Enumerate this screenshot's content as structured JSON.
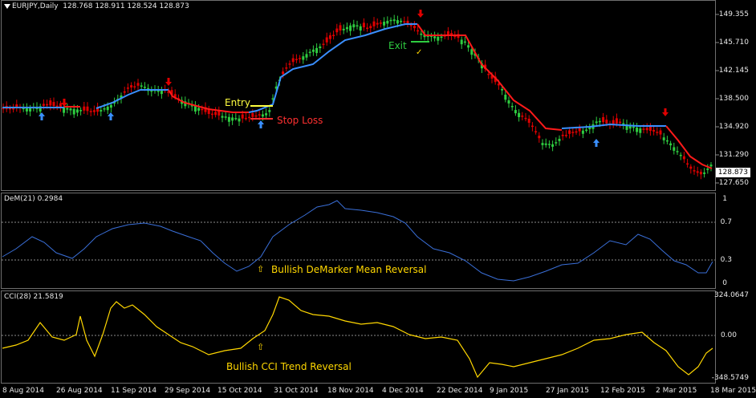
{
  "main_chart": {
    "title": "EURJPY,Daily  128.768 128.911 128.524 128.873",
    "price_badge": "128.873",
    "y_labels": [
      "149.355",
      "145.710",
      "142.145",
      "138.500",
      "134.920",
      "131.290",
      "127.650"
    ],
    "annotations": {
      "entry": "Entry",
      "stop_loss": "Stop Loss",
      "exit": "Exit",
      "check": "✓"
    },
    "colors": {
      "bull": "#2ecc40",
      "bear": "#e00000",
      "trail_up": "#3a8fff",
      "trail_down": "#ff1a1a"
    },
    "icons": [
      "up-arrow-icon",
      "down-arrow-icon"
    ]
  },
  "demarker": {
    "title": "DeM(21) 0.2984",
    "y_labels": [
      "1",
      "0.7",
      "0.3",
      "0"
    ],
    "annotation": "Bullish DeMarker Mean Reversal",
    "annotation_arrow": "⇧",
    "colors": {
      "line": "#3a6fd8",
      "level": "#bbbbbb"
    }
  },
  "cci": {
    "title": "CCI(28) 21.5819",
    "y_labels": [
      "324.0647",
      "0.00",
      "-348.5749"
    ],
    "annotation": "Bullish CCI Trend Reversal",
    "annotation_arrow": "⇧",
    "colors": {
      "line": "#ffd700"
    }
  },
  "x_axis": {
    "labels": [
      "8 Aug 2014",
      "26 Aug 2014",
      "11 Sep 2014",
      "29 Sep 2014",
      "15 Oct 2014",
      "31 Oct 2014",
      "18 Nov 2014",
      "4 Dec 2014",
      "22 Dec 2014",
      "9 Jan 2015",
      "27 Jan 2015",
      "12 Feb 2015",
      "2 Mar 2015",
      "18 Mar 2015"
    ]
  }
}
